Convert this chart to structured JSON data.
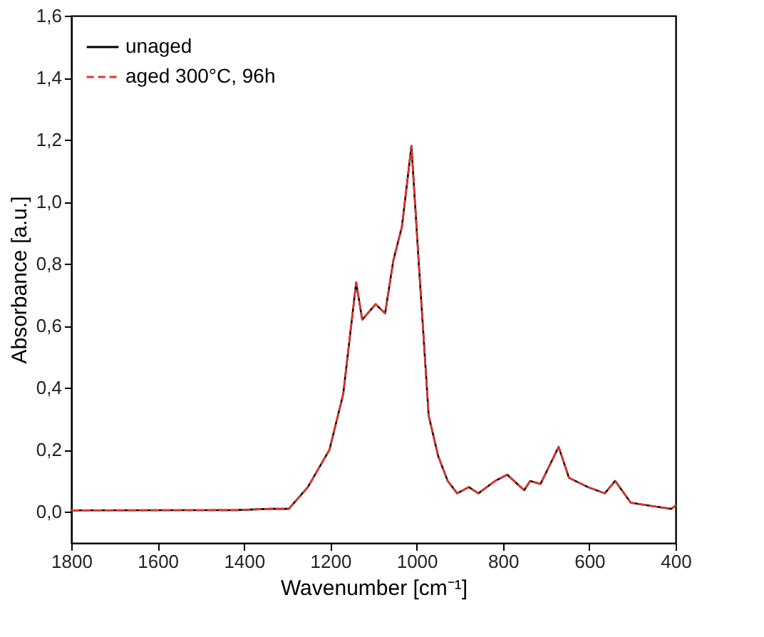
{
  "chart_data": {
    "type": "line",
    "xlabel": "Wavenumber [cm⁻¹]",
    "ylabel": "Absorbance [a.u.]",
    "x": [
      1800,
      1417,
      1340,
      1296,
      1252,
      1202,
      1170,
      1140,
      1126,
      1095,
      1073,
      1054,
      1034,
      1012,
      994,
      972,
      950,
      928,
      906,
      879,
      857,
      818,
      790,
      751,
      737,
      713,
      671,
      647,
      603,
      564,
      540,
      504,
      460,
      410,
      400
    ],
    "series": [
      {
        "name": "unaged",
        "color": "#000000",
        "line_style": "solid",
        "values": [
          0.005,
          0.006,
          0.01,
          0.01,
          0.08,
          0.2,
          0.38,
          0.74,
          0.62,
          0.67,
          0.64,
          0.81,
          0.92,
          1.18,
          0.78,
          0.31,
          0.18,
          0.1,
          0.06,
          0.08,
          0.06,
          0.1,
          0.12,
          0.07,
          0.1,
          0.09,
          0.21,
          0.11,
          0.08,
          0.06,
          0.1,
          0.03,
          0.02,
          0.01,
          0.02
        ]
      },
      {
        "name": "aged 300°C, 96h",
        "color": "#e8302a",
        "line_style": "dashed",
        "values": [
          0.005,
          0.006,
          0.01,
          0.01,
          0.08,
          0.2,
          0.38,
          0.74,
          0.62,
          0.67,
          0.64,
          0.81,
          0.92,
          1.18,
          0.78,
          0.31,
          0.18,
          0.1,
          0.06,
          0.08,
          0.06,
          0.1,
          0.12,
          0.07,
          0.1,
          0.09,
          0.21,
          0.11,
          0.08,
          0.06,
          0.1,
          0.03,
          0.02,
          0.01,
          0.02
        ]
      }
    ],
    "xlim": [
      1800,
      400
    ],
    "xticks": [
      1800,
      1600,
      1400,
      1200,
      1000,
      800,
      600,
      400
    ],
    "ylim": [
      -0.1,
      1.6
    ],
    "yticks": [
      {
        "value": 0,
        "label": "0,0"
      },
      {
        "value": 0.2,
        "label": "0,2"
      },
      {
        "value": 0.4,
        "label": "0,4"
      },
      {
        "value": 0.6,
        "label": "0,6"
      },
      {
        "value": 0.8,
        "label": "0,8"
      },
      {
        "value": 1.0,
        "label": "1,0"
      },
      {
        "value": 1.2,
        "label": "1,2"
      },
      {
        "value": 1.4,
        "label": "1,4"
      },
      {
        "value": 1.6,
        "label": "1,6"
      }
    ],
    "grid": false,
    "legend": "top left",
    "marker": "none"
  }
}
